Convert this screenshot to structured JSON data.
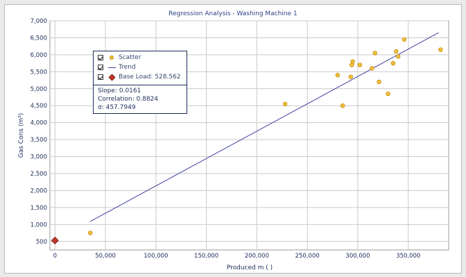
{
  "chart_data": {
    "type": "scatter",
    "title": "Regression Analysis - Washing Machine 1",
    "xlabel": "Produced m ( )",
    "ylabel": "Gas Cons (m³)",
    "xlim": [
      -5000,
      390000
    ],
    "ylim": [
      250,
      7000
    ],
    "x_ticks": [
      0,
      50000,
      100000,
      150000,
      200000,
      250000,
      300000,
      350000
    ],
    "x_tick_labels": [
      "0",
      "50,000",
      "100,000",
      "150,000",
      "200,000",
      "250,000",
      "300,000",
      "350,000"
    ],
    "y_ticks": [
      500,
      1000,
      1500,
      2000,
      2500,
      3000,
      3500,
      4000,
      4500,
      5000,
      5500,
      6000,
      6500,
      7000
    ],
    "y_tick_labels": [
      "500",
      "1,000",
      "1,500",
      "2,000",
      "2,500",
      "3,000",
      "3,500",
      "4,000",
      "4,500",
      "5,000",
      "5,500",
      "6,000",
      "6,500",
      "7,000"
    ],
    "grid": true,
    "legend": "top-left",
    "series": [
      {
        "name": "Scatter",
        "type": "scatter",
        "color": "#f0c040",
        "points": [
          [
            35000,
            750
          ],
          [
            228000,
            4550
          ],
          [
            280000,
            5400
          ],
          [
            285000,
            4500
          ],
          [
            293000,
            5350
          ],
          [
            294000,
            5700
          ],
          [
            295000,
            5800
          ],
          [
            302000,
            5700
          ],
          [
            314000,
            5600
          ],
          [
            317000,
            6050
          ],
          [
            321000,
            5200
          ],
          [
            330000,
            4850
          ],
          [
            335000,
            5750
          ],
          [
            338000,
            6100
          ],
          [
            340000,
            5950
          ],
          [
            346000,
            6450
          ],
          [
            382000,
            6150
          ]
        ]
      },
      {
        "name": "Trend",
        "type": "line",
        "color": "#3d3fa0",
        "points": [
          [
            35000,
            1090
          ],
          [
            380000,
            6650
          ]
        ]
      },
      {
        "name": "Base Load: 528.562",
        "type": "marker",
        "color": "#c0392b",
        "points": [
          [
            0,
            528.562
          ]
        ]
      }
    ],
    "stats": {
      "slope": "Slope: 0.0161",
      "correlation": "Correlation: 0.8824",
      "sigma": "σ: 457.7949"
    }
  },
  "legend": {
    "scatter_label": "Scatter",
    "trend_label": "Trend",
    "base_label": "Base Load: 528.562"
  }
}
